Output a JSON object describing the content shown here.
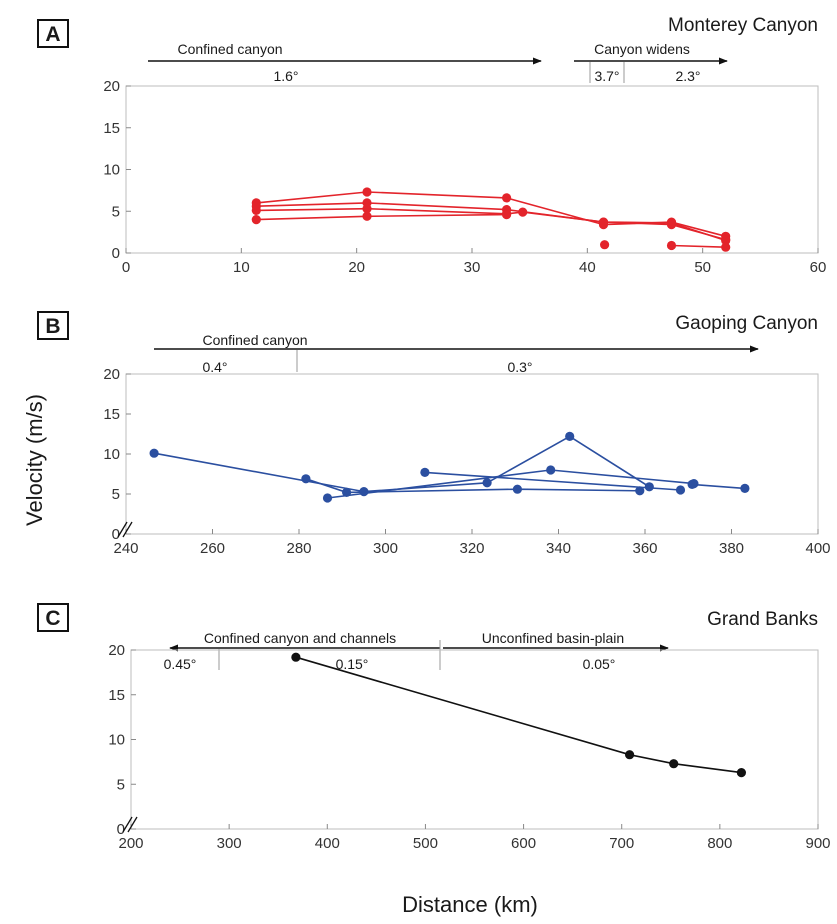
{
  "chart_data": [
    {
      "type": "line",
      "panel_label": "A",
      "title": "Monterey Canyon",
      "series_color": "#e3242b",
      "xlim": [
        0,
        60
      ],
      "ylim": [
        0,
        20
      ],
      "xticks": [
        0,
        10,
        20,
        30,
        40,
        50,
        60
      ],
      "yticks": [
        0,
        5,
        10,
        15,
        20
      ],
      "annotations": [
        {
          "text": "Confined canyon"
        },
        {
          "text": "1.6°"
        },
        {
          "text": "Canyon widens"
        },
        {
          "text": "3.7°"
        },
        {
          "text": "2.3°"
        }
      ],
      "series": [
        {
          "points": [
            [
              11.3,
              6.0
            ],
            [
              20.9,
              7.3
            ],
            [
              33.0,
              6.6
            ],
            [
              41.4,
              3.4
            ],
            [
              47.3,
              3.7
            ],
            [
              52.0,
              2.0
            ]
          ]
        },
        {
          "points": [
            [
              11.3,
              5.6
            ],
            [
              20.9,
              6.0
            ],
            [
              33.0,
              5.2
            ],
            [
              41.4,
              3.7
            ],
            [
              47.3,
              3.4
            ],
            [
              52.0,
              1.6
            ]
          ]
        },
        {
          "points": [
            [
              11.3,
              5.1
            ],
            [
              20.9,
              5.3
            ],
            [
              33.0,
              4.7
            ],
            [
              34.4,
              4.9
            ],
            [
              41.4,
              3.7
            ],
            [
              47.3,
              3.6
            ],
            [
              52.0,
              1.5
            ]
          ]
        },
        {
          "points": [
            [
              11.3,
              4.0
            ],
            [
              20.9,
              4.4
            ],
            [
              33.0,
              4.6
            ]
          ]
        },
        {
          "points": [
            [
              41.5,
              1.0
            ]
          ]
        },
        {
          "points": [
            [
              47.3,
              0.9
            ],
            [
              52.0,
              0.7
            ]
          ]
        }
      ]
    },
    {
      "type": "line",
      "panel_label": "B",
      "title": "Gaoping Canyon",
      "series_color": "#2b4fa0",
      "xlim": [
        240,
        400
      ],
      "ylim": [
        0,
        20
      ],
      "xticks": [
        240,
        260,
        280,
        300,
        320,
        340,
        360,
        380,
        400
      ],
      "yticks": [
        0,
        5,
        10,
        15,
        20
      ],
      "annotations": [
        {
          "text": "Confined canyon"
        },
        {
          "text": "0.4°"
        },
        {
          "text": "0.3°"
        }
      ],
      "series": [
        {
          "points": [
            [
              246.5,
              10.1
            ],
            [
              295.0,
              5.3
            ],
            [
              323.5,
              6.4
            ],
            [
              342.6,
              12.2
            ],
            [
              361.0,
              5.9
            ]
          ]
        },
        {
          "points": [
            [
              281.6,
              6.9
            ],
            [
              291.0,
              5.2
            ],
            [
              330.5,
              5.6
            ],
            [
              358.8,
              5.4
            ]
          ]
        },
        {
          "points": [
            [
              286.6,
              4.5
            ],
            [
              338.2,
              8.0
            ],
            [
              371.3,
              6.3
            ]
          ]
        },
        {
          "points": [
            [
              309.1,
              7.7
            ],
            [
              368.2,
              5.5
            ]
          ]
        },
        {
          "points": [
            [
              370.9,
              6.2
            ],
            [
              383.1,
              5.7
            ]
          ]
        }
      ]
    },
    {
      "type": "line",
      "panel_label": "C",
      "title": "Grand Banks",
      "series_color": "#111111",
      "xlabel": "Distance (km)",
      "ylabel": "Velocity (m/s)",
      "xlim": [
        200,
        900
      ],
      "ylim": [
        0,
        20
      ],
      "xticks": [
        200,
        300,
        400,
        500,
        600,
        700,
        800,
        900
      ],
      "yticks": [
        0,
        5,
        10,
        15,
        20
      ],
      "annotations": [
        {
          "text": "Confined canyon and channels"
        },
        {
          "text": "Unconfined basin-plain"
        },
        {
          "text": "0.45°"
        },
        {
          "text": "0.15°"
        },
        {
          "text": "0.05°"
        }
      ],
      "series": [
        {
          "points": [
            [
              368.0,
              19.2
            ],
            [
              708.0,
              8.3
            ],
            [
              753.0,
              7.3
            ],
            [
              822.0,
              6.3
            ]
          ]
        }
      ]
    }
  ]
}
